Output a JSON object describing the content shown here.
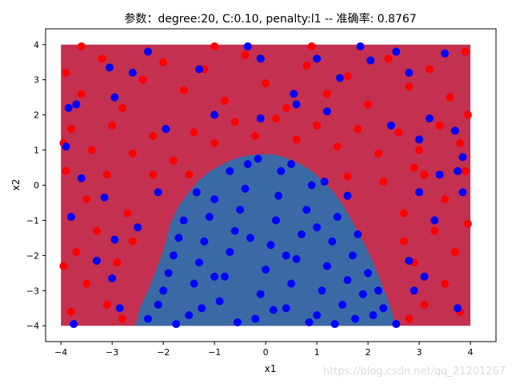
{
  "chart_data": {
    "type": "scatter",
    "title": "参数：degree:20, C:0.10, penalty:l1 -- 准确率: 0.8767",
    "xlabel": "x1",
    "ylabel": "x2",
    "xlim": [
      -4.3,
      4.5
    ],
    "ylim": [
      -4.45,
      4.45
    ],
    "xticks": [
      -4,
      -3,
      -2,
      -1,
      0,
      1,
      2,
      3,
      4
    ],
    "yticks": [
      -4,
      -3,
      -2,
      -1,
      0,
      1,
      2,
      3,
      4
    ],
    "grid": false,
    "legend": "none",
    "domain": {
      "xmin": -4,
      "xmax": 4,
      "ymin": -4,
      "ymax": 4
    },
    "background_region_color": "#c4304f",
    "decision_region_color": "#3a6aa5",
    "decision_boundary": {
      "x": [
        -2.55,
        -2.45,
        -2.3,
        -2.15,
        -2.0,
        -1.85,
        -1.7,
        -1.5,
        -1.3,
        -1.1,
        -0.9,
        -0.7,
        -0.5,
        -0.3,
        -0.1,
        0.1,
        0.3,
        0.5,
        0.7,
        0.9,
        1.1,
        1.3,
        1.5,
        1.7,
        1.9,
        2.1,
        2.25,
        2.4,
        2.5,
        2.55
      ],
      "y": [
        -4.0,
        -3.45,
        -3.0,
        -2.45,
        -1.85,
        -1.05,
        -0.6,
        -0.2,
        0.15,
        0.38,
        0.55,
        0.7,
        0.8,
        0.86,
        0.88,
        0.88,
        0.83,
        0.72,
        0.58,
        0.4,
        0.15,
        -0.15,
        -0.55,
        -1.05,
        -1.6,
        -2.2,
        -2.75,
        -3.3,
        -3.75,
        -4.0
      ]
    },
    "series": [
      {
        "color": "#ff0000",
        "points": [
          [
            -3.9,
            3.2
          ],
          [
            -3.6,
            2.6
          ],
          [
            -3.2,
            3.6
          ],
          [
            -2.8,
            2.2
          ],
          [
            -2.4,
            3.0
          ],
          [
            -2.0,
            3.5
          ],
          [
            -1.6,
            2.7
          ],
          [
            -1.2,
            3.3
          ],
          [
            -0.8,
            2.4
          ],
          [
            -0.4,
            3.7
          ],
          [
            0.0,
            2.9
          ],
          [
            0.4,
            2.2
          ],
          [
            0.8,
            3.4
          ],
          [
            1.2,
            2.6
          ],
          [
            1.6,
            3.1
          ],
          [
            2.0,
            2.3
          ],
          [
            2.4,
            3.6
          ],
          [
            2.8,
            2.8
          ],
          [
            3.2,
            3.3
          ],
          [
            3.6,
            2.5
          ],
          [
            3.9,
            3.8
          ],
          [
            -3.8,
            1.6
          ],
          [
            -3.4,
            1.0
          ],
          [
            -3.0,
            1.7
          ],
          [
            -2.6,
            0.9
          ],
          [
            -2.2,
            1.4
          ],
          [
            -1.8,
            0.7
          ],
          [
            -1.4,
            1.5
          ],
          [
            -1.0,
            1.2
          ],
          [
            -0.6,
            1.8
          ],
          [
            -0.2,
            1.4
          ],
          [
            0.2,
            1.9
          ],
          [
            0.6,
            1.3
          ],
          [
            1.0,
            1.7
          ],
          [
            1.4,
            1.1
          ],
          [
            1.8,
            1.6
          ],
          [
            2.2,
            0.9
          ],
          [
            2.6,
            1.5
          ],
          [
            3.0,
            1.0
          ],
          [
            3.4,
            1.7
          ],
          [
            3.8,
            1.2
          ],
          [
            -3.9,
            0.4
          ],
          [
            -3.5,
            -0.4
          ],
          [
            -3.1,
            0.3
          ],
          [
            -2.7,
            -0.8
          ],
          [
            -3.3,
            -1.3
          ],
          [
            -3.7,
            -1.9
          ],
          [
            -2.9,
            -2.2
          ],
          [
            -3.5,
            -2.8
          ],
          [
            -3.1,
            -3.4
          ],
          [
            -3.8,
            -3.6
          ],
          [
            -2.8,
            -3.8
          ],
          [
            -2.6,
            -1.6
          ],
          [
            3.9,
            0.4
          ],
          [
            3.5,
            -0.4
          ],
          [
            3.1,
            0.3
          ],
          [
            2.7,
            -0.8
          ],
          [
            3.3,
            -1.3
          ],
          [
            3.7,
            -1.9
          ],
          [
            2.9,
            -2.2
          ],
          [
            3.5,
            -2.8
          ],
          [
            3.1,
            -3.4
          ],
          [
            3.8,
            -3.6
          ],
          [
            2.8,
            -3.8
          ],
          [
            2.7,
            -1.6
          ],
          [
            -3.95,
            1.2
          ],
          [
            -3.6,
            3.95
          ],
          [
            -1.0,
            3.95
          ],
          [
            0.9,
            3.95
          ],
          [
            3.95,
            2.0
          ],
          [
            3.95,
            -1.1
          ],
          [
            -3.95,
            -2.3
          ],
          [
            2.9,
            0.5
          ],
          [
            -2.2,
            0.3
          ],
          [
            2.3,
            0.1
          ],
          [
            -1.5,
            0.3
          ],
          [
            1.6,
            0.25
          ]
        ]
      },
      {
        "color": "#0000ff",
        "points": [
          [
            -3.85,
            2.2
          ],
          [
            -3.7,
            2.3
          ],
          [
            -3.05,
            3.35
          ],
          [
            -2.95,
            2.5
          ],
          [
            -2.6,
            3.2
          ],
          [
            -2.3,
            3.8
          ],
          [
            -1.3,
            3.3
          ],
          [
            -0.35,
            3.95
          ],
          [
            -0.1,
            3.6
          ],
          [
            0.55,
            2.6
          ],
          [
            1.0,
            3.6
          ],
          [
            1.45,
            3.05
          ],
          [
            1.85,
            3.95
          ],
          [
            2.05,
            3.55
          ],
          [
            2.55,
            3.8
          ],
          [
            3.5,
            3.75
          ],
          [
            2.8,
            3.2
          ],
          [
            -1.95,
            1.6
          ],
          [
            -1.0,
            2.0
          ],
          [
            -0.1,
            1.9
          ],
          [
            0.6,
            2.3
          ],
          [
            1.2,
            2.1
          ],
          [
            2.45,
            1.7
          ],
          [
            3.2,
            1.9
          ],
          [
            3.0,
            1.3
          ],
          [
            3.7,
            1.55
          ],
          [
            3.85,
            0.8
          ],
          [
            3.75,
            0.4
          ],
          [
            -3.9,
            1.1
          ],
          [
            -3.6,
            0.2
          ],
          [
            -3.15,
            -0.35
          ],
          [
            -3.8,
            -0.9
          ],
          [
            -2.95,
            -1.55
          ],
          [
            -3.3,
            -2.15
          ],
          [
            -3.0,
            -2.65
          ],
          [
            -2.85,
            -3.5
          ],
          [
            -3.75,
            -3.95
          ],
          [
            -2.1,
            -0.2
          ],
          [
            -2.5,
            -1.2
          ],
          [
            3.0,
            -0.2
          ],
          [
            3.4,
            0.3
          ],
          [
            3.85,
            -0.2
          ],
          [
            3.3,
            -1.0
          ],
          [
            2.8,
            -2.15
          ],
          [
            3.1,
            -2.6
          ],
          [
            3.75,
            -3.5
          ],
          [
            2.55,
            -3.95
          ],
          [
            2.9,
            -3.0
          ],
          [
            -2.3,
            -3.8
          ],
          [
            -2.1,
            -3.4
          ],
          [
            -2.0,
            -3.0
          ],
          [
            -1.9,
            -2.5
          ],
          [
            -1.8,
            -2.0
          ],
          [
            -1.7,
            -1.5
          ],
          [
            -1.6,
            -1.0
          ],
          [
            -1.5,
            -3.7
          ],
          [
            -1.4,
            -2.8
          ],
          [
            -1.3,
            -2.2
          ],
          [
            -1.2,
            -1.6
          ],
          [
            -1.1,
            -0.9
          ],
          [
            -1.0,
            -0.4
          ],
          [
            -0.9,
            -3.3
          ],
          [
            -0.8,
            -2.6
          ],
          [
            -0.7,
            -1.9
          ],
          [
            -0.6,
            -1.3
          ],
          [
            -0.5,
            -0.7
          ],
          [
            -0.4,
            -0.1
          ],
          [
            -0.35,
            0.6
          ],
          [
            -0.2,
            -3.8
          ],
          [
            -0.1,
            -3.1
          ],
          [
            0.0,
            -2.4
          ],
          [
            0.1,
            -1.7
          ],
          [
            0.2,
            -1.0
          ],
          [
            0.25,
            -0.3
          ],
          [
            0.3,
            0.4
          ],
          [
            0.4,
            -3.5
          ],
          [
            0.5,
            -2.8
          ],
          [
            0.6,
            -2.1
          ],
          [
            0.7,
            -1.4
          ],
          [
            0.8,
            -0.7
          ],
          [
            0.9,
            0.0
          ],
          [
            1.0,
            -3.7
          ],
          [
            1.1,
            -3.0
          ],
          [
            1.2,
            -2.3
          ],
          [
            1.3,
            -1.6
          ],
          [
            1.4,
            -0.9
          ],
          [
            1.5,
            -3.4
          ],
          [
            1.6,
            -2.7
          ],
          [
            1.7,
            -2.0
          ],
          [
            1.8,
            -1.4
          ],
          [
            1.9,
            -3.1
          ],
          [
            2.0,
            -2.5
          ],
          [
            2.1,
            -3.7
          ],
          [
            2.2,
            -3.0
          ],
          [
            -1.75,
            -3.95
          ],
          [
            -1.25,
            -3.5
          ],
          [
            -0.55,
            -3.9
          ],
          [
            0.15,
            -3.55
          ],
          [
            0.85,
            -3.9
          ],
          [
            1.35,
            -3.95
          ],
          [
            1.75,
            -3.8
          ],
          [
            2.3,
            -3.5
          ],
          [
            -0.7,
            0.4
          ],
          [
            -0.15,
            0.75
          ],
          [
            0.5,
            0.6
          ],
          [
            1.15,
            0.1
          ],
          [
            -1.35,
            -0.2
          ],
          [
            1.6,
            -0.3
          ],
          [
            -0.3,
            -1.5
          ],
          [
            0.4,
            -2.0
          ],
          [
            -1.0,
            -2.6
          ],
          [
            1.0,
            -1.2
          ]
        ]
      }
    ]
  },
  "watermark": "https://blog.csdn.net/qq_21201267"
}
